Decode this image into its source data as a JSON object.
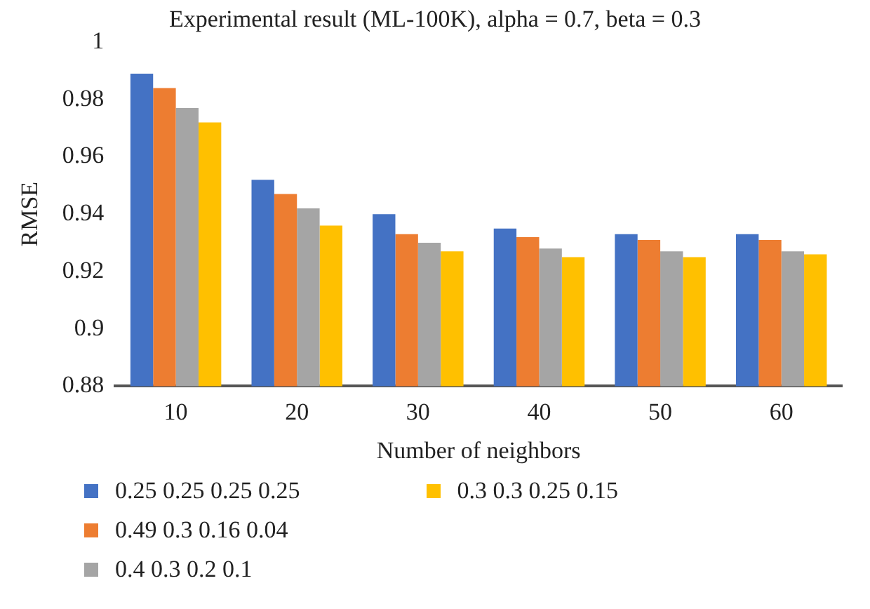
{
  "chart_data": {
    "type": "bar",
    "title": "Experimental result (ML-100K), alpha = 0.7, beta = 0.3",
    "xlabel": "Number of neighbors",
    "ylabel": "RMSE",
    "categories": [
      "10",
      "20",
      "30",
      "40",
      "50",
      "60"
    ],
    "series": [
      {
        "name": "0.25 0.25 0.25 0.25",
        "color": "#4472c4",
        "values": [
          0.989,
          0.952,
          0.94,
          0.935,
          0.933,
          0.933
        ]
      },
      {
        "name": "0.49 0.3 0.16 0.04",
        "color": "#ed7d31",
        "values": [
          0.984,
          0.947,
          0.933,
          0.932,
          0.931,
          0.931
        ]
      },
      {
        "name": "0.4 0.3 0.2 0.1",
        "color": "#a5a5a5",
        "values": [
          0.977,
          0.942,
          0.93,
          0.928,
          0.927,
          0.927
        ]
      },
      {
        "name": "0.3 0.3 0.25 0.15",
        "color": "#ffc000",
        "values": [
          0.972,
          0.936,
          0.927,
          0.925,
          0.925,
          0.926
        ]
      }
    ],
    "ylim": [
      0.88,
      1
    ],
    "yticks": [
      0.88,
      0.9,
      0.92,
      0.94,
      0.96,
      0.98,
      1
    ],
    "grid": false,
    "legend": "bottom"
  }
}
